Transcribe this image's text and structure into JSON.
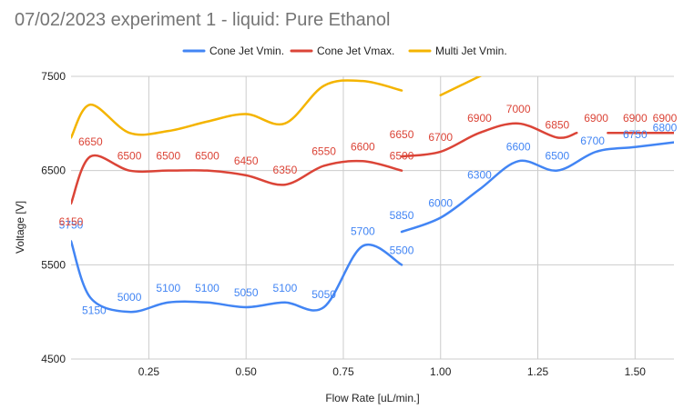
{
  "chart_data": {
    "type": "line",
    "title": "07/02/2023 experiment 1 - liquid: Pure Ethanol",
    "xlabel": "Flow Rate [uL/min.]",
    "ylabel": "Voltage [V]",
    "xlim": [
      0.05,
      1.6
    ],
    "ylim": [
      4500,
      7500
    ],
    "x_ticks": [
      "0.25",
      "0.50",
      "0.75",
      "1.00",
      "1.25",
      "1.50"
    ],
    "y_ticks": [
      "4500",
      "5500",
      "6500",
      "7500"
    ],
    "grid": true,
    "legend_position": "top",
    "series": [
      {
        "name": "Cone Jet Vmin.",
        "color": "#4285f4",
        "segments": [
          {
            "x": [
              0.05,
              0.1,
              0.2,
              0.3,
              0.4,
              0.5,
              0.6,
              0.7,
              0.8,
              0.9
            ],
            "y": [
              5750,
              5150,
              5000,
              5100,
              5100,
              5050,
              5100,
              5050,
              5700,
              5500
            ]
          },
          {
            "x": [
              0.9,
              1.0,
              1.1,
              1.2,
              1.3,
              1.4,
              1.5,
              1.6
            ],
            "y": [
              5850,
              6000,
              6300,
              6600,
              6500,
              6700,
              6750,
              6800
            ]
          }
        ]
      },
      {
        "name": "Cone Jet Vmax.",
        "color": "#db4437",
        "segments": [
          {
            "x": [
              0.05,
              0.1,
              0.2,
              0.3,
              0.4,
              0.5,
              0.6,
              0.7,
              0.8,
              0.9
            ],
            "y": [
              6150,
              6650,
              6500,
              6500,
              6500,
              6450,
              6350,
              6550,
              6600,
              6500
            ]
          },
          {
            "x": [
              0.9,
              1.0,
              1.1,
              1.2,
              1.3,
              1.35
            ],
            "y": [
              6650,
              6700,
              6900,
              7000,
              6850,
              6900
            ]
          },
          {
            "x": [
              1.43,
              1.5,
              1.6
            ],
            "y": [
              6900,
              6900,
              6900
            ]
          }
        ]
      },
      {
        "name": "Multi Jet Vmin.",
        "color": "#f4b400",
        "segments": [
          {
            "x": [
              0.05,
              0.1,
              0.2,
              0.3,
              0.4,
              0.5,
              0.6,
              0.7,
              0.8,
              0.9
            ],
            "y": [
              6850,
              7200,
              6900,
              6920,
              7020,
              7100,
              7000,
              7400,
              7450,
              7350
            ]
          },
          {
            "x": [
              1.0,
              1.1,
              1.15
            ],
            "y": [
              7300,
              7500,
              7600
            ]
          }
        ]
      }
    ],
    "data_labels": [
      {
        "series": 0,
        "x": 0.05,
        "y": 5750,
        "text": "5750"
      },
      {
        "series": 0,
        "x": 0.1,
        "y": 5150,
        "text": "5150"
      },
      {
        "series": 0,
        "x": 0.2,
        "y": 5000,
        "text": "5000"
      },
      {
        "series": 0,
        "x": 0.3,
        "y": 5100,
        "text": "5100"
      },
      {
        "series": 0,
        "x": 0.4,
        "y": 5100,
        "text": "5100"
      },
      {
        "series": 0,
        "x": 0.5,
        "y": 5050,
        "text": "5050"
      },
      {
        "series": 0,
        "x": 0.6,
        "y": 5100,
        "text": "5100"
      },
      {
        "series": 0,
        "x": 0.7,
        "y": 5050,
        "text": "5050"
      },
      {
        "series": 0,
        "x": 0.8,
        "y": 5700,
        "text": "5700"
      },
      {
        "series": 0,
        "x": 0.9,
        "y": 5850,
        "text": "5850"
      },
      {
        "series": 0,
        "x": 0.9,
        "y": 5500,
        "text": "5500"
      },
      {
        "series": 0,
        "x": 1.0,
        "y": 6000,
        "text": "6000"
      },
      {
        "series": 0,
        "x": 1.1,
        "y": 6300,
        "text": "6300"
      },
      {
        "series": 0,
        "x": 1.2,
        "y": 6600,
        "text": "6600"
      },
      {
        "series": 0,
        "x": 1.3,
        "y": 6500,
        "text": "6500"
      },
      {
        "series": 0,
        "x": 1.4,
        "y": 6700,
        "text": "6700"
      },
      {
        "series": 0,
        "x": 1.5,
        "y": 6750,
        "text": "6750"
      },
      {
        "series": 0,
        "x": 1.6,
        "y": 6800,
        "text": "6800"
      },
      {
        "series": 1,
        "x": 0.05,
        "y": 6150,
        "text": "6150"
      },
      {
        "series": 1,
        "x": 0.1,
        "y": 6650,
        "text": "6650"
      },
      {
        "series": 1,
        "x": 0.2,
        "y": 6500,
        "text": "6500"
      },
      {
        "series": 1,
        "x": 0.3,
        "y": 6500,
        "text": "6500"
      },
      {
        "series": 1,
        "x": 0.4,
        "y": 6500,
        "text": "6500"
      },
      {
        "series": 1,
        "x": 0.5,
        "y": 6450,
        "text": "6450"
      },
      {
        "series": 1,
        "x": 0.6,
        "y": 6350,
        "text": "6350"
      },
      {
        "series": 1,
        "x": 0.7,
        "y": 6550,
        "text": "6550"
      },
      {
        "series": 1,
        "x": 0.8,
        "y": 6600,
        "text": "6600"
      },
      {
        "series": 1,
        "x": 0.9,
        "y": 6650,
        "text": "6650"
      },
      {
        "series": 1,
        "x": 0.9,
        "y": 6500,
        "text": "6500"
      },
      {
        "series": 1,
        "x": 1.0,
        "y": 6700,
        "text": "6700"
      },
      {
        "series": 1,
        "x": 1.1,
        "y": 6900,
        "text": "6900"
      },
      {
        "series": 1,
        "x": 1.2,
        "y": 7000,
        "text": "7000"
      },
      {
        "series": 1,
        "x": 1.3,
        "y": 6850,
        "text": "6850"
      },
      {
        "series": 1,
        "x": 1.4,
        "y": 6900,
        "text": "6900"
      },
      {
        "series": 1,
        "x": 1.5,
        "y": 6900,
        "text": "6900"
      },
      {
        "series": 1,
        "x": 1.6,
        "y": 6900,
        "text": "6900"
      }
    ]
  }
}
